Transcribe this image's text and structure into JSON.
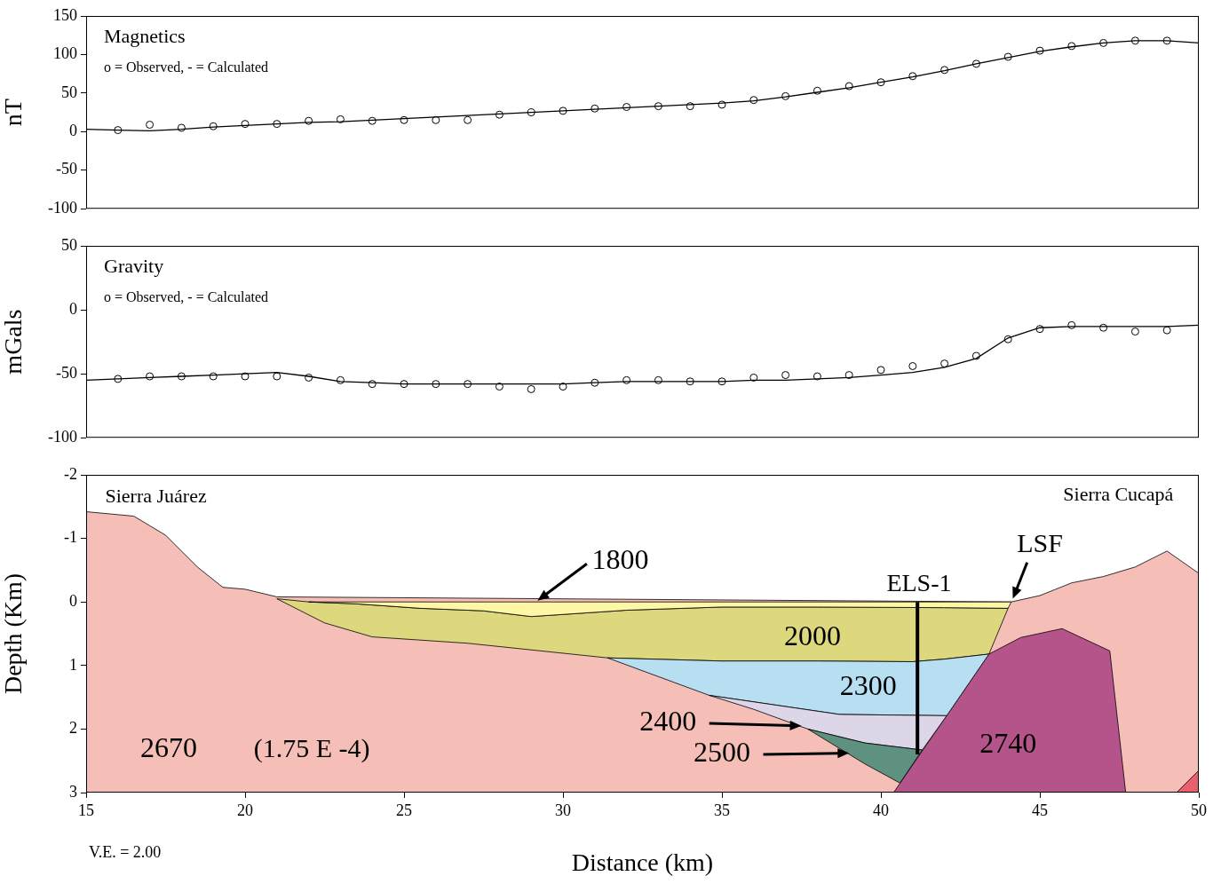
{
  "chart_data": [
    {
      "type": "line",
      "title": "Magnetics",
      "subtitle": "o = Observed, - = Calculated",
      "y_label": "nT",
      "x": [
        15,
        16,
        17,
        18,
        19,
        20,
        21,
        22,
        23,
        24,
        25,
        26,
        27,
        28,
        29,
        30,
        31,
        32,
        33,
        34,
        35,
        36,
        37,
        38,
        39,
        40,
        41,
        42,
        43,
        44,
        45,
        46,
        47,
        48,
        49,
        50
      ],
      "series": [
        {
          "name": "Observed",
          "color": "#000000",
          "marker": "circle",
          "line_style": "none",
          "values": [
            null,
            2,
            9,
            5,
            7,
            10,
            10,
            14,
            16,
            14,
            15,
            15,
            15,
            22,
            25,
            27,
            30,
            32,
            33,
            33,
            35,
            41,
            46,
            53,
            59,
            64,
            72,
            80,
            88,
            97,
            105,
            111,
            115,
            118,
            118,
            null
          ]
        },
        {
          "name": "Calculated",
          "color": "#000000",
          "marker": "none",
          "line_style": "solid",
          "values": [
            3,
            2,
            1,
            3,
            6,
            8,
            10,
            12,
            13,
            15,
            17,
            19,
            21,
            23,
            25,
            27,
            29,
            31,
            33,
            35,
            37,
            40,
            45,
            51,
            57,
            64,
            71,
            79,
            88,
            96,
            104,
            110,
            115,
            118,
            118,
            115
          ]
        }
      ],
      "xlim": [
        15,
        50
      ],
      "ylim": [
        -100,
        150
      ],
      "yticks": [
        -100,
        -50,
        0,
        50,
        100,
        150
      ],
      "grid": false,
      "tick_labels": "y"
    },
    {
      "type": "line",
      "title": "Gravity",
      "subtitle": "o = Observed, - = Calculated",
      "y_label": "mGals",
      "x": [
        15,
        16,
        17,
        18,
        19,
        20,
        21,
        22,
        23,
        24,
        25,
        26,
        27,
        28,
        29,
        30,
        31,
        32,
        33,
        34,
        35,
        36,
        37,
        38,
        39,
        40,
        41,
        42,
        43,
        44,
        45,
        46,
        47,
        48,
        49,
        50
      ],
      "series": [
        {
          "name": "Observed",
          "color": "#000000",
          "marker": "circle",
          "line_style": "none",
          "values": [
            null,
            -54,
            -52,
            -52,
            -52,
            -52,
            -52,
            -53,
            -55,
            -58,
            -58,
            -58,
            -58,
            -60,
            -62,
            -60,
            -57,
            -55,
            -55,
            -56,
            -56,
            -53,
            -51,
            -52,
            -51,
            -47,
            -44,
            -42,
            -36,
            -23,
            -15,
            -12,
            -14,
            -17,
            -16,
            null
          ]
        },
        {
          "name": "Calculated",
          "color": "#000000",
          "marker": "none",
          "line_style": "solid",
          "values": [
            -55,
            -54,
            -53,
            -52,
            -51,
            -50,
            -49,
            -52,
            -56,
            -57,
            -58,
            -58,
            -58,
            -58,
            -58,
            -58,
            -57,
            -56,
            -56,
            -56,
            -56,
            -55,
            -55,
            -54,
            -53,
            -51,
            -49,
            -45,
            -38,
            -22,
            -14,
            -13,
            -13,
            -13,
            -13,
            -12
          ]
        }
      ],
      "xlim": [
        15,
        50
      ],
      "ylim": [
        -100,
        50
      ],
      "yticks": [
        -100,
        -50,
        0,
        50
      ],
      "grid": false,
      "tick_labels": "y"
    },
    {
      "type": "cross_section",
      "x_label": "Distance (km)",
      "y_label": "Depth (Km)",
      "footnote": "V.E. = 2.00",
      "xlim": [
        15,
        50
      ],
      "xticks": [
        15,
        20,
        25,
        30,
        35,
        40,
        45,
        50
      ],
      "ylim": [
        3,
        -2
      ],
      "yticks": [
        -2,
        -1,
        0,
        1,
        2,
        3
      ],
      "grid": false,
      "bodies": [
        {
          "density": 2670,
          "color": "#f5bfb8",
          "label_at": [
            17.6,
            2.33
          ],
          "points": [
            [
              15,
              -1.42
            ],
            [
              16.5,
              -1.35
            ],
            [
              17.5,
              -1.05
            ],
            [
              18.5,
              -0.55
            ],
            [
              19.3,
              -0.23
            ],
            [
              20,
              -0.2
            ],
            [
              21,
              -0.08
            ],
            [
              44.1,
              0.0
            ],
            [
              45,
              -0.1
            ],
            [
              45.5,
              -0.2
            ],
            [
              46,
              -0.3
            ],
            [
              47,
              -0.4
            ],
            [
              48,
              -0.55
            ],
            [
              49,
              -0.8
            ],
            [
              50,
              -0.45
            ],
            [
              50,
              3
            ],
            [
              15,
              3
            ]
          ]
        },
        {
          "density": 2740,
          "color": "#b5548a",
          "label_at": [
            44.0,
            2.26
          ],
          "points": [
            [
              40.4,
              3
            ],
            [
              43.4,
              0.82
            ],
            [
              44.4,
              0.56
            ],
            [
              45.7,
              0.42
            ],
            [
              47.2,
              0.77
            ],
            [
              47.7,
              3
            ]
          ]
        },
        {
          "density": null,
          "color": "#e8606c",
          "label_at": null,
          "points": [
            [
              49.3,
              3
            ],
            [
              50,
              2.65
            ],
            [
              50,
              3
            ]
          ]
        },
        {
          "density": 2000,
          "color": "#ddd77e",
          "label_at": [
            37.85,
            0.56
          ],
          "points": [
            [
              21,
              -0.05
            ],
            [
              22,
              0.0
            ],
            [
              23.5,
              0.03
            ],
            [
              25.5,
              0.1
            ],
            [
              27.5,
              0.14
            ],
            [
              29,
              0.23
            ],
            [
              32,
              0.13
            ],
            [
              35,
              0.08
            ],
            [
              38,
              0.08
            ],
            [
              42,
              0.09
            ],
            [
              44,
              0.1
            ],
            [
              43.4,
              0.82
            ],
            [
              42,
              0.9
            ],
            [
              41,
              0.94
            ],
            [
              38,
              0.93
            ],
            [
              35,
              0.93
            ],
            [
              31.4,
              0.88
            ],
            [
              27,
              0.65
            ],
            [
              24,
              0.55
            ],
            [
              22.5,
              0.33
            ]
          ]
        },
        {
          "density": 1800,
          "color": "#fef7a6",
          "label_at": [
            31.8,
            -0.64
          ],
          "arrow_from": [
            30.75,
            -0.6
          ],
          "arrow_to": [
            29.2,
            -0.02
          ],
          "points": [
            [
              22,
              0.0
            ],
            [
              44.1,
              0.0
            ],
            [
              44,
              0.1
            ],
            [
              42,
              0.09
            ],
            [
              38,
              0.08
            ],
            [
              35,
              0.08
            ],
            [
              32,
              0.13
            ],
            [
              29,
              0.23
            ],
            [
              27.5,
              0.14
            ],
            [
              25.5,
              0.1
            ],
            [
              23.5,
              0.03
            ]
          ]
        },
        {
          "density": 2300,
          "color": "#b8def2",
          "label_at": [
            39.6,
            1.35
          ],
          "points": [
            [
              31.4,
              0.88
            ],
            [
              35,
              0.93
            ],
            [
              38,
              0.93
            ],
            [
              41,
              0.94
            ],
            [
              42,
              0.9
            ],
            [
              43.4,
              0.82
            ],
            [
              42.07,
              1.79
            ],
            [
              38.7,
              1.77
            ],
            [
              34.6,
              1.47
            ]
          ]
        },
        {
          "density": 2400,
          "color": "#ddd5e8",
          "label_at": [
            33.3,
            1.91
          ],
          "arrow_from": [
            34.6,
            1.91
          ],
          "arrow_to": [
            37.5,
            1.95
          ],
          "points": [
            [
              34.6,
              1.47
            ],
            [
              38.7,
              1.77
            ],
            [
              42.07,
              1.79
            ],
            [
              41.3,
              2.33
            ],
            [
              39.5,
              2.22
            ],
            [
              37.7,
              2.0
            ],
            [
              36,
              1.69
            ]
          ]
        },
        {
          "density": 2500,
          "color": "#5e917f",
          "label_at": [
            35.0,
            2.4
          ],
          "arrow_from": [
            36.3,
            2.4
          ],
          "arrow_to": [
            39.0,
            2.38
          ],
          "points": [
            [
              37.7,
              2.0
            ],
            [
              39.5,
              2.22
            ],
            [
              41.3,
              2.33
            ],
            [
              40.6,
              2.85
            ],
            [
              39.5,
              2.55
            ]
          ]
        }
      ],
      "wells": [
        {
          "name": "ELS-1",
          "x": 41.15,
          "top": 0,
          "bottom": 2.4,
          "label_at": [
            41.2,
            -0.28
          ]
        }
      ],
      "annotations": [
        {
          "text": "(1.75 E -4)",
          "at": [
            22.1,
            2.33
          ]
        },
        {
          "text": "LSF",
          "at": [
            45.0,
            -0.9
          ],
          "arrow_from": [
            44.6,
            -0.62
          ],
          "arrow_to": [
            44.15,
            -0.05
          ]
        }
      ],
      "place_names": [
        {
          "text": "Sierra Juárez",
          "at": [
            15.6,
            -1.65
          ],
          "align": "left"
        },
        {
          "text": "Sierra Cucapá",
          "at": [
            49.2,
            -1.68
          ],
          "align": "right"
        }
      ]
    }
  ]
}
